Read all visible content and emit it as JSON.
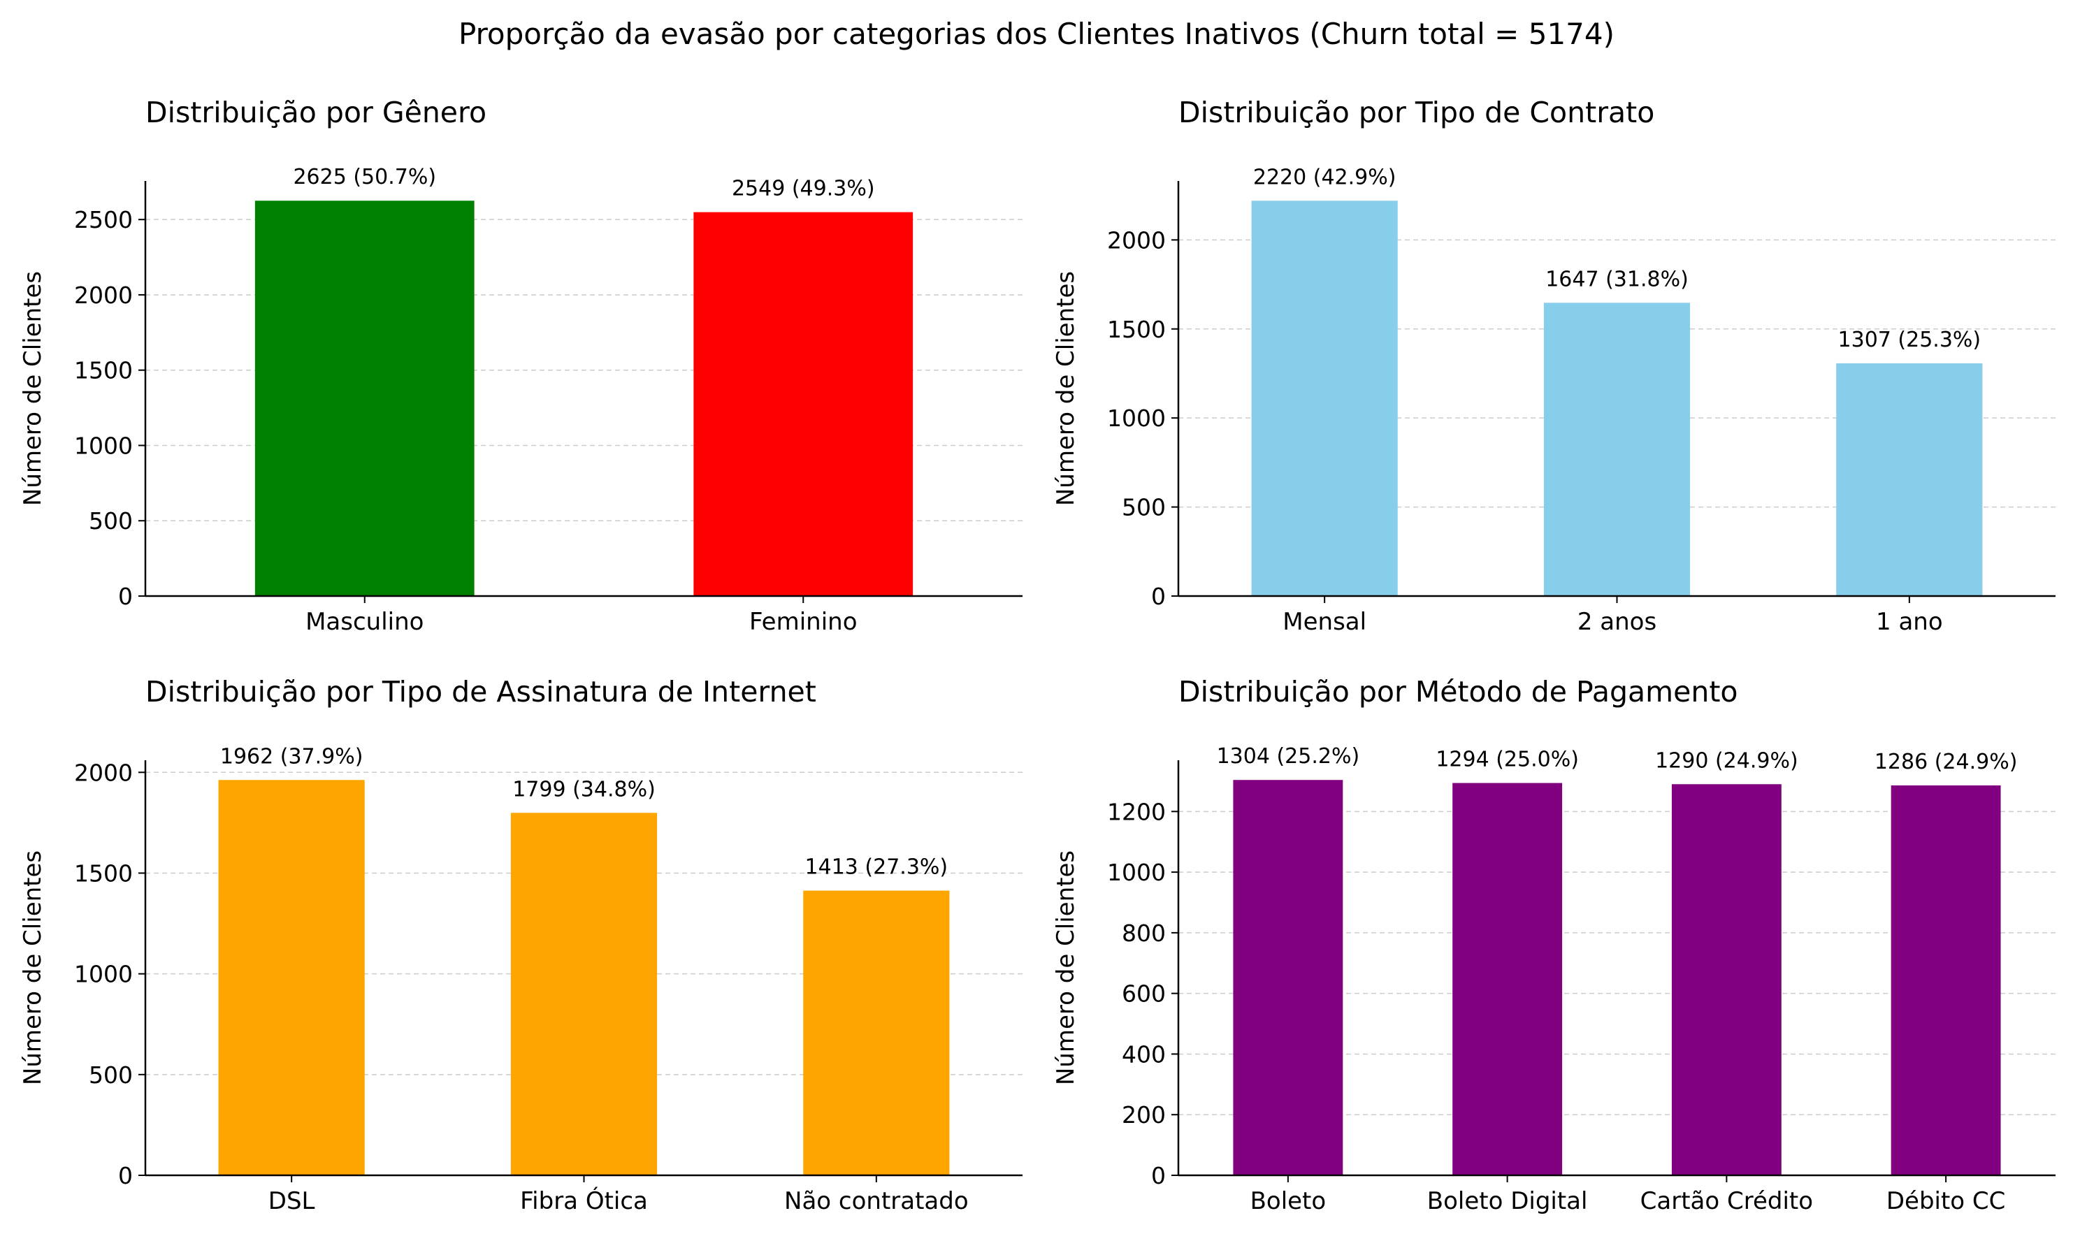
{
  "title": "Proporção da evasão por categorias dos Clientes Inativos (Churn total = 5174)",
  "chart_data": [
    {
      "type": "bar",
      "title": "Distribuição por Gênero",
      "xlabel": "",
      "ylabel": "Número de Clientes",
      "categories": [
        "Masculino",
        "Feminino"
      ],
      "values": [
        2625,
        2549
      ],
      "labels": [
        "2625 (50.7%)",
        "2549 (49.3%)"
      ],
      "colors": [
        "#008000",
        "#ff0000"
      ],
      "ylim": [
        0,
        2756
      ],
      "yticks": [
        0,
        500,
        1000,
        1500,
        2000,
        2500
      ],
      "grid": "y-dashed"
    },
    {
      "type": "bar",
      "title": "Distribuição por Tipo de Contrato",
      "xlabel": "",
      "ylabel": "Número de Clientes",
      "categories": [
        "Mensal",
        "2 anos",
        "1 ano"
      ],
      "values": [
        2220,
        1647,
        1307
      ],
      "labels": [
        "2220 (42.9%)",
        "1647 (31.8%)",
        "1307 (25.3%)"
      ],
      "colors": [
        "#87ceeb",
        "#87ceeb",
        "#87ceeb"
      ],
      "ylim": [
        0,
        2331
      ],
      "yticks": [
        0,
        500,
        1000,
        1500,
        2000
      ],
      "grid": "y-dashed"
    },
    {
      "type": "bar",
      "title": "Distribuição por Tipo de Assinatura de Internet",
      "xlabel": "",
      "ylabel": "Número de Clientes",
      "categories": [
        "DSL",
        "Fibra Ótica",
        "Não contratado"
      ],
      "values": [
        1962,
        1799,
        1413
      ],
      "labels": [
        "1962 (37.9%)",
        "1799 (34.8%)",
        "1413 (27.3%)"
      ],
      "colors": [
        "#ffa500",
        "#ffa500",
        "#ffa500"
      ],
      "ylim": [
        0,
        2060
      ],
      "yticks": [
        0,
        500,
        1000,
        1500,
        2000
      ],
      "grid": "y-dashed"
    },
    {
      "type": "bar",
      "title": "Distribuição por Método de Pagamento",
      "xlabel": "",
      "ylabel": "Número de Clientes",
      "categories": [
        "Boleto",
        "Boleto Digital",
        "Cartão Crédito",
        "Débito CC"
      ],
      "values": [
        1304,
        1294,
        1290,
        1286
      ],
      "labels": [
        "1304 (25.2%)",
        "1294 (25.0%)",
        "1290 (24.9%)",
        "1286 (24.9%)"
      ],
      "colors": [
        "#800080",
        "#800080",
        "#800080",
        "#800080"
      ],
      "ylim": [
        0,
        1369
      ],
      "yticks": [
        0,
        200,
        400,
        600,
        800,
        1000,
        1200
      ],
      "grid": "y-dashed"
    }
  ]
}
